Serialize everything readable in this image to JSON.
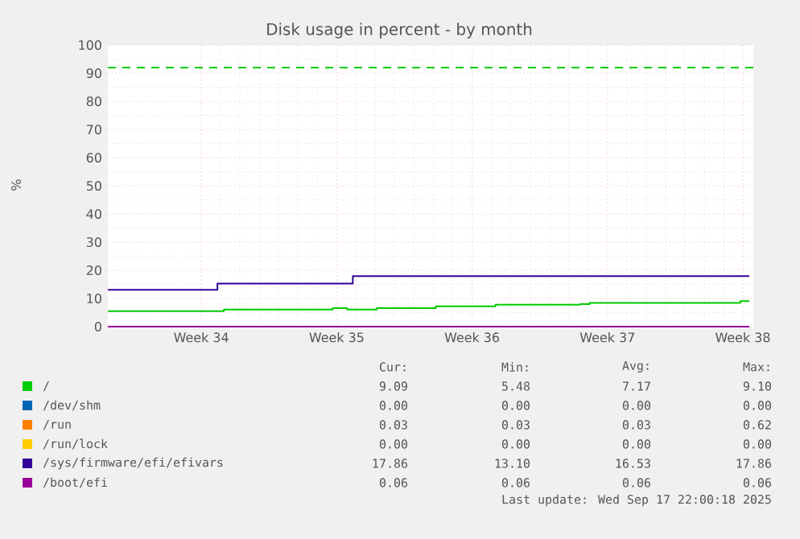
{
  "chart_data": {
    "type": "step",
    "title": "Disk usage in percent - by month",
    "ylabel": "%",
    "xlim": [
      "2025-08-13T04:00",
      "2025-09-15T13:00"
    ],
    "ylim": [
      0,
      100
    ],
    "xticks": [
      {
        "value": "2025-08-18",
        "label": "Week 34"
      },
      {
        "value": "2025-08-25",
        "label": "Week 35"
      },
      {
        "value": "2025-09-01",
        "label": "Week 36"
      },
      {
        "value": "2025-09-08",
        "label": "Week 37"
      },
      {
        "value": "2025-09-15",
        "label": "Week 38"
      }
    ],
    "yticks": [
      0,
      10,
      20,
      30,
      40,
      50,
      60,
      70,
      80,
      90,
      100
    ],
    "grid": true,
    "legend": "bottom",
    "series": [
      {
        "name": "/",
        "color": "#00cc00",
        "x": [
          "2025-08-13T04:00",
          "2025-08-19T04:00",
          "2025-08-24T19:00",
          "2025-08-25T13:00",
          "2025-08-27T02:00",
          "2025-08-30T03:00",
          "2025-09-02T05:00",
          "2025-09-06T14:00",
          "2025-09-07T02:00",
          "2025-09-14T21:00",
          "2025-09-15T08:00"
        ],
        "values": [
          5.5,
          6.1,
          6.6,
          6.1,
          6.6,
          7.2,
          7.8,
          8.0,
          8.4,
          9.1,
          9.1
        ]
      },
      {
        "name": "/dev/shm",
        "color": "#0066b3"
      },
      {
        "name": "/run",
        "color": "#ff8000"
      },
      {
        "name": "/run/lock",
        "color": "#ffcc00"
      },
      {
        "name": "/sys/firmware/efi/efivars",
        "color": "#330099",
        "x": [
          "2025-08-13T04:00",
          "2025-08-18T20:00",
          "2025-08-25T20:00",
          "2025-09-15T08:00"
        ],
        "values": [
          13.1,
          15.3,
          17.9,
          17.9
        ]
      },
      {
        "name": "/boot/efi",
        "color": "#990099",
        "x": [
          "2025-08-13T04:00",
          "2025-09-15T08:00"
        ],
        "values": [
          0,
          0
        ]
      }
    ],
    "ref_lines": [
      {
        "axis": "y",
        "value": 92,
        "color": "#00cc00",
        "line_style": "dashed"
      }
    ],
    "annotations": [
      "Cur:",
      "Min:",
      "Avg:",
      "Max:",
      "9.09",
      "5.48",
      "7.17",
      "9.10",
      "0.00",
      "0.00",
      "0.00",
      "0.00",
      "0.03",
      "0.03",
      "0.03",
      "0.62",
      "0.00",
      "0.00",
      "0.00",
      "0.00",
      "17.86",
      "13.10",
      "16.53",
      "17.86",
      "0.06",
      "0.06",
      "0.06",
      "0.06",
      "Last update: Wed Sep 17 22:00:18 2025"
    ]
  }
}
